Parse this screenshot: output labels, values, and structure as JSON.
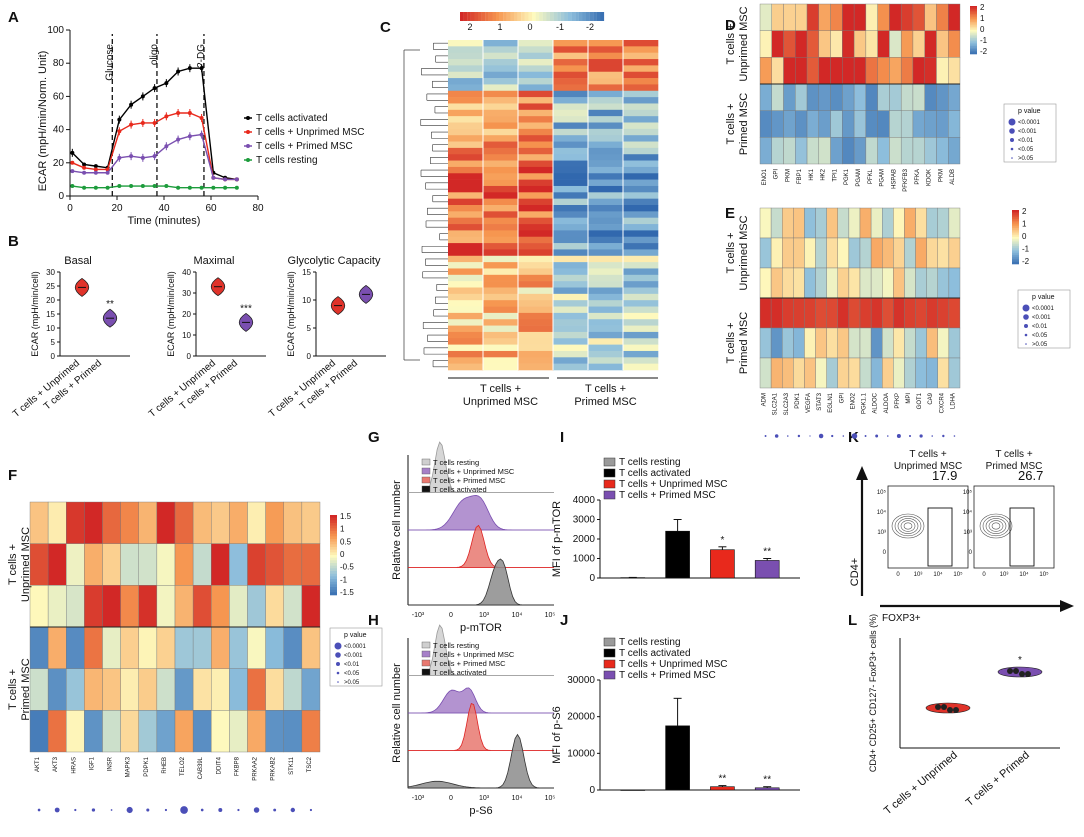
{
  "panel_letters": [
    "A",
    "B",
    "C",
    "D",
    "E",
    "F",
    "G",
    "H",
    "I",
    "J",
    "K",
    "L"
  ],
  "chart_data": [
    {
      "id": "A",
      "type": "line",
      "xlabel": "Time (minutes)",
      "ylabel": "ECAR (mpH/min/Norm. Unit)",
      "xlim": [
        0,
        80
      ],
      "ylim": [
        0,
        100
      ],
      "xticks": [
        0,
        20,
        40,
        60,
        80
      ],
      "yticks": [
        0,
        20,
        40,
        60,
        80,
        100
      ],
      "injections": [
        {
          "label": "Glucose",
          "x": 18
        },
        {
          "label": "oligo",
          "x": 37
        },
        {
          "label": "2-DG",
          "x": 57
        }
      ],
      "x": [
        1,
        6,
        11,
        16,
        21,
        26,
        31,
        36,
        41,
        46,
        51,
        56,
        61,
        66,
        71
      ],
      "series": [
        {
          "name": "T cells activated",
          "color": "#000000",
          "values": [
            26,
            19,
            18,
            17,
            46,
            55,
            60,
            65,
            68,
            75,
            77,
            77,
            14,
            11,
            10
          ]
        },
        {
          "name": "T cells + Unprimed MSC",
          "color": "#e8291c",
          "values": [
            20,
            17,
            16,
            16,
            39,
            43,
            44,
            44,
            48,
            50,
            50,
            47,
            11,
            10,
            10
          ]
        },
        {
          "name": "T cells + Primed MSC",
          "color": "#7a4fb0",
          "values": [
            15,
            14,
            14,
            14,
            23,
            24,
            23,
            24,
            30,
            34,
            36,
            37,
            11,
            10,
            10
          ]
        },
        {
          "name": "T cells resting",
          "color": "#1d9c3c",
          "values": [
            6,
            5,
            5,
            5,
            6,
            6,
            6,
            6,
            6,
            5,
            5,
            5,
            5,
            5,
            5
          ]
        }
      ]
    },
    {
      "id": "B",
      "type": "violin",
      "ylabel": "ECAR (mpH/min/cell)",
      "categories": [
        "T cells + Unprimed",
        "T cells + Primed"
      ],
      "subplots": [
        {
          "title": "Basal",
          "ylim": [
            0,
            30
          ],
          "yticks": [
            0,
            5,
            10,
            15,
            20,
            25,
            30
          ],
          "values": [
            24.5,
            13.5
          ],
          "sig": [
            "",
            "**"
          ]
        },
        {
          "title": "Maximal",
          "ylim": [
            0,
            40
          ],
          "yticks": [
            0,
            10,
            20,
            30,
            40
          ],
          "values": [
            33,
            16
          ],
          "sig": [
            "",
            "***"
          ]
        },
        {
          "title": "Glycolytic Capacity",
          "ylim": [
            0,
            15
          ],
          "yticks": [
            0,
            5,
            10,
            15
          ],
          "values": [
            9,
            11
          ],
          "sig": [
            "",
            ""
          ]
        }
      ]
    },
    {
      "id": "C",
      "type": "heatmap",
      "colorbar_ticks": [
        "2",
        "1",
        "0",
        "-1",
        "-2"
      ],
      "groups": [
        "T cells +\nUnprimed MSC",
        "T cells +\nPrimed MSC"
      ],
      "rows": 52,
      "cols": 6
    },
    {
      "id": "D",
      "type": "heatmap",
      "row_groups": [
        "T cells +\nUnprimed MSC",
        "T cells +\nPrimed MSC"
      ],
      "genes": [
        "ENO1",
        "GPI",
        "PKM",
        "FBP1",
        "HK1",
        "HK2",
        "TPI1",
        "PGK1",
        "PGAM",
        "PFKL",
        "PGAM",
        "HSPAB",
        "PFKFB3",
        "PFKA",
        "KDOK",
        "PKM",
        "ALDB"
      ],
      "colorbar_ticks": [
        "2",
        "1",
        "0",
        "-1",
        "-2"
      ],
      "pvalue_legend": {
        "title": "p value",
        "items": [
          "<0.0001",
          "<0.001",
          "<0.01",
          "<0.05",
          ">0.05"
        ]
      }
    },
    {
      "id": "E",
      "type": "heatmap",
      "row_groups": [
        "T cells +\nUnprimed MSC",
        "T cells +\nPrimed MSC"
      ],
      "genes": [
        "ADM",
        "SLC2A1",
        "SLC2A3",
        "PDK1",
        "VEGFA",
        "STAT3",
        "EGLN1",
        "GPI",
        "ENO2",
        "PGK1.1",
        "ALDOC",
        "ALDOA",
        "PFKP",
        "MPI",
        "GOT1",
        "CA9",
        "CXCR4",
        "LDHA"
      ],
      "colorbar_ticks": [
        "2",
        "1",
        "0",
        "-1",
        "-2"
      ],
      "pvalue_legend": {
        "title": "p value",
        "items": [
          "<0.0001",
          "<0.001",
          "<0.01",
          "<0.05",
          ">0.05"
        ]
      }
    },
    {
      "id": "F",
      "type": "heatmap",
      "row_groups": [
        "T cells +\nUnprimed MSC",
        "T cells +\nPrimed MSC"
      ],
      "genes": [
        "AKT1",
        "AKT3",
        "HRAS",
        "IGF1",
        "INSR",
        "MAPK3",
        "PDPK1",
        "RHEB",
        "TELO2",
        "CAB39L",
        "DDIT4",
        "FKBP8",
        "PRKAA2",
        "PRKAB2",
        "STK11",
        "TSC2"
      ],
      "colorbar_ticks": [
        "1.5",
        "1",
        "0.5",
        "0",
        "-0.5",
        "-1",
        "-1.5"
      ],
      "pvalue_legend": {
        "title": "p value",
        "items": [
          "<0.0001",
          "<0.001",
          "<0.01",
          "<0.05",
          ">0.05"
        ]
      }
    },
    {
      "id": "G",
      "type": "histogram",
      "xlabel": "p-mTOR",
      "ylabel": "Relative cell number",
      "xticks": [
        "-10³",
        "0",
        "10³",
        "10⁴",
        "10⁵"
      ],
      "series": [
        "T cells resting",
        "T cells + Unprimed MSC",
        "T cells + Primed MSC",
        "T cells activated"
      ]
    },
    {
      "id": "H",
      "type": "histogram",
      "xlabel": "p-S6",
      "ylabel": "Relative cell number",
      "xticks": [
        "-10³",
        "0",
        "10³",
        "10⁴",
        "10⁵"
      ],
      "series": [
        "T cells resting",
        "T cells + Unprimed MSC",
        "T cells + Primed MSC",
        "T cells activated"
      ]
    },
    {
      "id": "I",
      "type": "bar",
      "ylabel": "MFI of p-mTOR",
      "ylim": [
        0,
        4000
      ],
      "yticks": [
        0,
        1000,
        2000,
        3000,
        4000
      ],
      "categories": [
        "T cells resting",
        "T cells activated",
        "T cells + Unprimed  MSC",
        "T cells + Primed MSC"
      ],
      "values": [
        20,
        2400,
        1450,
        900
      ],
      "errors": [
        10,
        600,
        150,
        100
      ],
      "sig": [
        "",
        "",
        "*",
        "**"
      ]
    },
    {
      "id": "J",
      "type": "bar",
      "ylabel": "MFI of p-S6",
      "ylim": [
        0,
        30000
      ],
      "yticks": [
        0,
        10000,
        20000,
        30000
      ],
      "categories": [
        "T cells resting",
        "T cells activated",
        "T cells + Unprimed  MSC",
        "T cells + Primed MSC"
      ],
      "values": [
        0,
        17500,
        900,
        600
      ],
      "errors": [
        0,
        7500,
        300,
        300
      ],
      "sig": [
        "",
        "",
        "**",
        "**"
      ]
    },
    {
      "id": "K",
      "type": "flow-contour",
      "xlabel": "FOXP3+",
      "ylabel": "CD4+",
      "plots": [
        {
          "title": "T cells +\nUnprimed MSC",
          "gate_value": "17.9"
        },
        {
          "title": "T cells +\nPrimed MSC",
          "gate_value": "26.7"
        }
      ]
    },
    {
      "id": "L",
      "type": "violin",
      "ylabel": "CD4+ CD25+ CD127- FoxP3+ cells (%)",
      "categories": [
        "T cells + Unprimed",
        "T cells + Primed"
      ],
      "values": [
        17.5,
        26.5
      ],
      "sig": [
        "",
        "*"
      ]
    }
  ]
}
